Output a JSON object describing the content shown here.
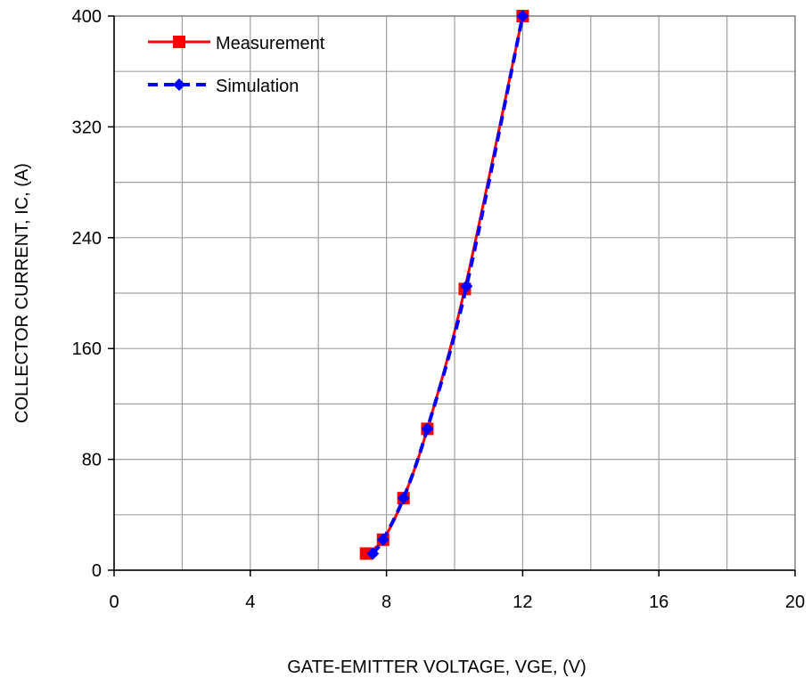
{
  "chart_data": {
    "type": "line",
    "title": "",
    "xlabel": "GATE-EMITTER  VOLTAGE, VGE, (V)",
    "ylabel": "COLLECTOR  CURRENT,  IC, (A)",
    "xlim": [
      0,
      20
    ],
    "ylim": [
      0,
      400
    ],
    "x_ticks": [
      0,
      4,
      8,
      12,
      16,
      20
    ],
    "y_ticks": [
      0,
      80,
      160,
      240,
      320,
      400
    ],
    "x_minor_step": 2,
    "y_minor_step": 40,
    "grid": true,
    "legend_position": "top-left",
    "series": [
      {
        "name": "Measurement",
        "color": "#ff0000",
        "marker": "square",
        "line_style": "solid",
        "x": [
          7.4,
          7.9,
          8.5,
          9.2,
          10.3,
          12.0
        ],
        "y": [
          12,
          22,
          52,
          102,
          203,
          400
        ]
      },
      {
        "name": "Simulation",
        "color": "#0000ff",
        "marker": "diamond",
        "line_style": "dashed",
        "x": [
          7.6,
          7.9,
          8.5,
          9.2,
          10.35,
          12.0
        ],
        "y": [
          12,
          22,
          52,
          102,
          205,
          400
        ]
      }
    ]
  }
}
